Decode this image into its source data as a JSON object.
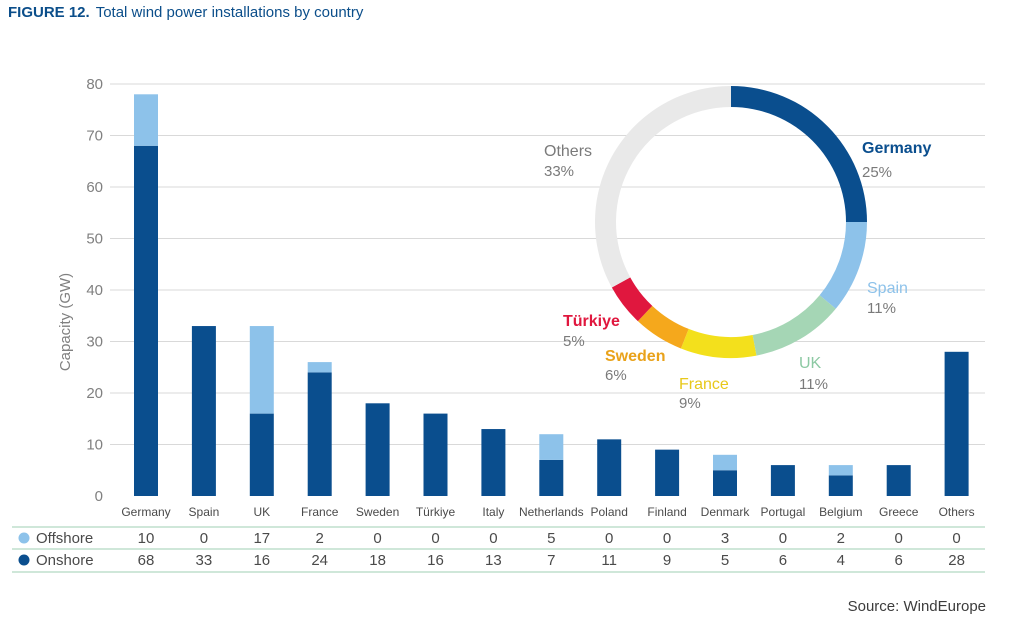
{
  "figure": {
    "label": "FIGURE 12.",
    "title": "Total wind power installations by country",
    "source": "Source: WindEurope"
  },
  "colors": {
    "offshore": "#8dc2ea",
    "onshore": "#0a4e8e",
    "grid": "#d9d9d9",
    "axis_text": "#808080",
    "table_line": "#9fcfb3",
    "title": "#0b4e8a"
  },
  "chart_data": [
    {
      "type": "bar",
      "stacked": true,
      "ylabel": "Capacity (GW)",
      "ylim": [
        0,
        80
      ],
      "yticks": [
        0,
        10,
        20,
        30,
        40,
        50,
        60,
        70,
        80
      ],
      "grid": true,
      "categories": [
        "Germany",
        "Spain",
        "UK",
        "France",
        "Sweden",
        "Türkiye",
        "Italy",
        "Netherlands",
        "Poland",
        "Finland",
        "Denmark",
        "Portugal",
        "Belgium",
        "Greece",
        "Others"
      ],
      "series": [
        {
          "name": "Onshore",
          "color": "#0a4e8e",
          "values": [
            68,
            33,
            16,
            24,
            18,
            16,
            13,
            7,
            11,
            9,
            5,
            6,
            4,
            6,
            28
          ]
        },
        {
          "name": "Offshore",
          "color": "#8dc2ea",
          "values": [
            10,
            0,
            17,
            2,
            0,
            0,
            0,
            5,
            0,
            0,
            3,
            0,
            2,
            0,
            0
          ]
        }
      ],
      "table_rows": [
        {
          "name": "Offshore",
          "color": "#8dc2ea",
          "values": [
            "10",
            "0",
            "17",
            "2",
            "0",
            "0",
            "0",
            "5",
            "0",
            "0",
            "3",
            "0",
            "2",
            "0",
            "0"
          ]
        },
        {
          "name": "Onshore",
          "color": "#0a4e8e",
          "values": [
            "68",
            "33",
            "16",
            "24",
            "18",
            "16",
            "13",
            "7",
            "11",
            "9",
            "5",
            "6",
            "4",
            "6",
            "28"
          ]
        }
      ]
    },
    {
      "type": "pie",
      "donut": true,
      "slices": [
        {
          "label": "Germany",
          "pct_label": "25%",
          "value": 25,
          "color": "#0a4e8e"
        },
        {
          "label": "Spain",
          "pct_label": "11%",
          "value": 11,
          "color": "#8dc2ea"
        },
        {
          "label": "UK",
          "pct_label": "11%",
          "value": 11,
          "color": "#a5d6b5"
        },
        {
          "label": "France",
          "pct_label": "9%",
          "value": 9,
          "color": "#f3e01c"
        },
        {
          "label": "Sweden",
          "pct_label": "6%",
          "value": 6,
          "color": "#f5a81c"
        },
        {
          "label": "Türkiye",
          "pct_label": "5%",
          "value": 5,
          "color": "#e0173e"
        },
        {
          "label": "Others",
          "pct_label": "33%",
          "value": 33,
          "color": "#e9e9e9"
        }
      ]
    }
  ]
}
